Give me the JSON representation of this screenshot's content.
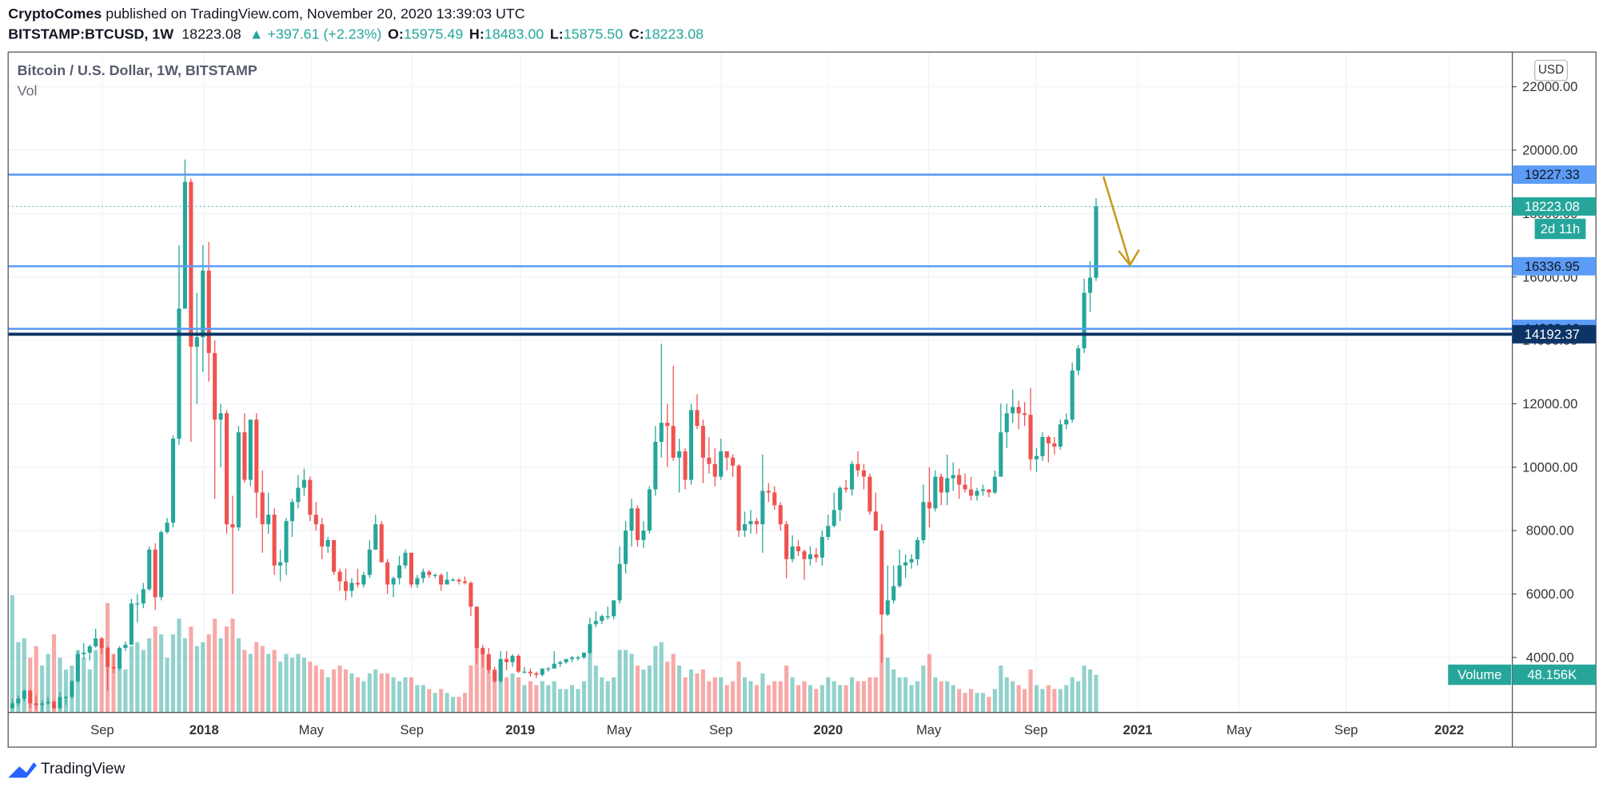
{
  "header": {
    "author": "CryptoComes",
    "published": "published on TradingView.com, November 20, 2020 13:39:03 UTC",
    "symbol": "BITSTAMP:BTCUSD, 1W",
    "last": "18223.08",
    "change": "▲ +397.61 (+2.23%)",
    "o_label": "O:",
    "o": "15975.49",
    "h_label": "H:",
    "h": "18483.00",
    "l_label": "L:",
    "l": "15875.50",
    "c_label": "C:",
    "c": "18223.08"
  },
  "footer": {
    "brand": "TradingView"
  },
  "chart_data": {
    "type": "candlestick",
    "title": "Bitcoin / U.S. Dollar, 1W, BITSTAMP",
    "volume_title": "Vol",
    "currency": "USD",
    "up_color": "#26a69a",
    "down_color": "#ef5350",
    "grid": true,
    "ylim": [
      2264,
      23093
    ],
    "yticks": [
      {
        "value": 4000,
        "label": "4000.00"
      },
      {
        "value": 6000,
        "label": "6000.00"
      },
      {
        "value": 8000,
        "label": "8000.00"
      },
      {
        "value": 10000,
        "label": "10000.00"
      },
      {
        "value": 12000,
        "label": "12000.00"
      },
      {
        "value": 14000,
        "label": "14000.00"
      },
      {
        "value": 16000,
        "label": "16000.00"
      },
      {
        "value": 18000,
        "label": "18000.00"
      },
      {
        "value": 20000,
        "label": "20000.00"
      },
      {
        "value": 22000,
        "label": "22000.00"
      }
    ],
    "xlim": [
      -0.7,
      251.9
    ],
    "xticks": [
      {
        "value": 15.1,
        "label": "Sep"
      },
      {
        "value": 32.2,
        "label": "2018"
      },
      {
        "value": 50.2,
        "label": "May"
      },
      {
        "value": 67.1,
        "label": "Sep"
      },
      {
        "value": 85.3,
        "label": "2019"
      },
      {
        "value": 101.9,
        "label": "May"
      },
      {
        "value": 119.0,
        "label": "Sep"
      },
      {
        "value": 137.0,
        "label": "2020"
      },
      {
        "value": 153.9,
        "label": "May"
      },
      {
        "value": 171.9,
        "label": "Sep"
      },
      {
        "value": 189.0,
        "label": "2021"
      },
      {
        "value": 206.0,
        "label": "May"
      },
      {
        "value": 224.0,
        "label": "Sep"
      },
      {
        "value": 241.3,
        "label": "2022"
      }
    ],
    "candles": [
      [
        2400,
        2700,
        2350,
        2550
      ],
      [
        2550,
        2800,
        2450,
        2700
      ],
      [
        2700,
        2980,
        2600,
        2950
      ],
      [
        2950,
        3000,
        2400,
        2550
      ],
      [
        2550,
        2800,
        2350,
        2500
      ],
      [
        2500,
        2650,
        2300,
        2550
      ],
      [
        2550,
        2750,
        2500,
        2600
      ],
      [
        2600,
        2650,
        2350,
        2400
      ],
      [
        2400,
        2900,
        2350,
        2750
      ],
      [
        2750,
        2800,
        2500,
        2750
      ],
      [
        2750,
        3300,
        2700,
        3250
      ],
      [
        3250,
        4200,
        3200,
        4100
      ],
      [
        4100,
        4450,
        3950,
        4150
      ],
      [
        4150,
        4400,
        3900,
        4350
      ],
      [
        4350,
        4900,
        4300,
        4600
      ],
      [
        4600,
        4650,
        4100,
        4300
      ],
      [
        4300,
        4350,
        2950,
        3700
      ],
      [
        3700,
        4100,
        3500,
        3650
      ],
      [
        3650,
        4350,
        3600,
        4300
      ],
      [
        4300,
        4500,
        4200,
        4400
      ],
      [
        4400,
        5850,
        4400,
        5700
      ],
      [
        5700,
        6000,
        5100,
        5700
      ],
      [
        5700,
        6350,
        5550,
        6150
      ],
      [
        6150,
        7500,
        6100,
        7400
      ],
      [
        7400,
        7600,
        5500,
        5900
      ],
      [
        5900,
        8000,
        5800,
        7950
      ],
      [
        7950,
        8400,
        7900,
        8250
      ],
      [
        8250,
        11000,
        8100,
        10900
      ],
      [
        10900,
        17000,
        10700,
        15000
      ],
      [
        15000,
        19700,
        15000,
        19000
      ],
      [
        19000,
        19100,
        10800,
        13800
      ],
      [
        13800,
        15500,
        12000,
        14100
      ],
      [
        14100,
        17000,
        13000,
        16200
      ],
      [
        16200,
        17100,
        12700,
        13600
      ],
      [
        13600,
        14000,
        9000,
        11500
      ],
      [
        11500,
        12000,
        10000,
        11700
      ],
      [
        11700,
        11800,
        7900,
        8200
      ],
      [
        8200,
        9100,
        6000,
        8100
      ],
      [
        8100,
        11300,
        8000,
        11100
      ],
      [
        11100,
        11700,
        9500,
        9600
      ],
      [
        9600,
        11500,
        9400,
        11500
      ],
      [
        11500,
        11700,
        8400,
        9200
      ],
      [
        9200,
        9900,
        7300,
        8200
      ],
      [
        8200,
        9200,
        7900,
        8500
      ],
      [
        8500,
        8700,
        6600,
        6900
      ],
      [
        6900,
        7400,
        6400,
        7000
      ],
      [
        7000,
        8400,
        6600,
        8300
      ],
      [
        8300,
        9000,
        7800,
        8900
      ],
      [
        8900,
        9750,
        8700,
        9350
      ],
      [
        9350,
        9950,
        9100,
        9600
      ],
      [
        9600,
        9700,
        8300,
        8500
      ],
      [
        8500,
        8900,
        8000,
        8200
      ],
      [
        8200,
        8400,
        7100,
        7500
      ],
      [
        7500,
        7800,
        7300,
        7700
      ],
      [
        7700,
        7700,
        6600,
        6700
      ],
      [
        6700,
        6800,
        6100,
        6400
      ],
      [
        6400,
        6800,
        5800,
        6100
      ],
      [
        6100,
        6500,
        5900,
        6350
      ],
      [
        6350,
        6800,
        6200,
        6300
      ],
      [
        6300,
        6700,
        6200,
        6600
      ],
      [
        6600,
        7700,
        6500,
        7400
      ],
      [
        7400,
        8500,
        7400,
        8200
      ],
      [
        8200,
        8300,
        7000,
        7000
      ],
      [
        7000,
        7100,
        6000,
        6300
      ],
      [
        6300,
        6550,
        5900,
        6500
      ],
      [
        6500,
        7200,
        6300,
        6900
      ],
      [
        6900,
        7400,
        6800,
        7300
      ],
      [
        7300,
        7300,
        6200,
        6300
      ],
      [
        6300,
        6600,
        6200,
        6500
      ],
      [
        6500,
        6800,
        6350,
        6700
      ],
      [
        6700,
        6750,
        6500,
        6600
      ],
      [
        6600,
        6650,
        6500,
        6600
      ],
      [
        6600,
        6650,
        6100,
        6300
      ],
      [
        6300,
        6700,
        6300,
        6450
      ],
      [
        6450,
        6500,
        6400,
        6450
      ],
      [
        6450,
        6500,
        6300,
        6400
      ],
      [
        6400,
        6550,
        6300,
        6350
      ],
      [
        6350,
        6400,
        5300,
        5600
      ],
      [
        5600,
        5600,
        3800,
        4300
      ],
      [
        4300,
        4400,
        3700,
        4100
      ],
      [
        4100,
        4300,
        3500,
        3600
      ],
      [
        3600,
        3700,
        3200,
        3250
      ],
      [
        3250,
        4200,
        3200,
        3950
      ],
      [
        3950,
        4200,
        3600,
        3850
      ],
      [
        3850,
        4100,
        3700,
        4050
      ],
      [
        4050,
        4100,
        3500,
        3550
      ],
      [
        3550,
        3700,
        3500,
        3550
      ],
      [
        3550,
        3650,
        3400,
        3500
      ],
      [
        3500,
        3550,
        3350,
        3450
      ],
      [
        3450,
        3650,
        3400,
        3650
      ],
      [
        3650,
        3700,
        3550,
        3650
      ],
      [
        3650,
        4200,
        3650,
        3800
      ],
      [
        3800,
        3900,
        3700,
        3850
      ],
      [
        3850,
        3950,
        3800,
        3950
      ],
      [
        3950,
        4050,
        3850,
        4000
      ],
      [
        4000,
        4050,
        3900,
        4000
      ],
      [
        4000,
        4150,
        3950,
        4150
      ],
      [
        4150,
        5250,
        4100,
        5050
      ],
      [
        5050,
        5450,
        4950,
        5150
      ],
      [
        5150,
        5350,
        5050,
        5300
      ],
      [
        5300,
        5600,
        5200,
        5300
      ],
      [
        5300,
        5800,
        5200,
        5800
      ],
      [
        5800,
        7500,
        5700,
        6950
      ],
      [
        6950,
        8300,
        6650,
        8000
      ],
      [
        8000,
        9000,
        7500,
        8700
      ],
      [
        8700,
        8800,
        7500,
        7700
      ],
      [
        7700,
        8300,
        7450,
        8000
      ],
      [
        8000,
        9400,
        7900,
        9300
      ],
      [
        9300,
        11300,
        9100,
        10800
      ],
      [
        10800,
        13900,
        10300,
        11400
      ],
      [
        11400,
        12000,
        10000,
        11300
      ],
      [
        11300,
        13200,
        10200,
        10300
      ],
      [
        10300,
        10900,
        9200,
        10500
      ],
      [
        10500,
        10600,
        9300,
        9600
      ],
      [
        9600,
        12000,
        9450,
        11800
      ],
      [
        11800,
        12300,
        11200,
        11300
      ],
      [
        11300,
        11500,
        9500,
        10300
      ],
      [
        10300,
        10950,
        9800,
        10100
      ],
      [
        10100,
        10600,
        9400,
        9700
      ],
      [
        9700,
        10900,
        9600,
        10500
      ],
      [
        10500,
        10500,
        9900,
        10300
      ],
      [
        10300,
        10400,
        9700,
        10050
      ],
      [
        10050,
        10100,
        7800,
        8000
      ],
      [
        8000,
        8600,
        7800,
        8200
      ],
      [
        8200,
        8650,
        7900,
        8300
      ],
      [
        8300,
        8400,
        7900,
        8200
      ],
      [
        8200,
        10400,
        7300,
        9250
      ],
      [
        9250,
        9500,
        8900,
        9200
      ],
      [
        9200,
        9400,
        8650,
        8800
      ],
      [
        8800,
        8900,
        8000,
        8200
      ],
      [
        8200,
        8300,
        6500,
        7100
      ],
      [
        7100,
        7850,
        7000,
        7500
      ],
      [
        7500,
        7700,
        7200,
        7350
      ],
      [
        7350,
        7400,
        6450,
        7100
      ],
      [
        7100,
        7500,
        6900,
        7250
      ],
      [
        7250,
        7450,
        7000,
        7150
      ],
      [
        7150,
        8000,
        6900,
        7800
      ],
      [
        7800,
        8500,
        7700,
        8150
      ],
      [
        8150,
        9200,
        8100,
        8650
      ],
      [
        8650,
        9400,
        8300,
        9350
      ],
      [
        9350,
        9600,
        9200,
        9300
      ],
      [
        9300,
        10200,
        9100,
        10100
      ],
      [
        10100,
        10500,
        9700,
        9900
      ],
      [
        9900,
        10100,
        9300,
        9700
      ],
      [
        9700,
        9800,
        8500,
        8600
      ],
      [
        8600,
        9200,
        8000,
        8000
      ],
      [
        8000,
        8200,
        3850,
        5350
      ],
      [
        5350,
        6900,
        5300,
        5800
      ],
      [
        5800,
        6900,
        5700,
        6250
      ],
      [
        6250,
        7400,
        6200,
        6900
      ],
      [
        6900,
        7250,
        6500,
        7000
      ],
      [
        7000,
        7250,
        6800,
        7100
      ],
      [
        7100,
        7800,
        6900,
        7700
      ],
      [
        7700,
        9450,
        7600,
        8900
      ],
      [
        8900,
        10000,
        8100,
        8700
      ],
      [
        8700,
        9900,
        8600,
        9700
      ],
      [
        9700,
        9800,
        8800,
        9200
      ],
      [
        9200,
        10400,
        8800,
        9650
      ],
      [
        9650,
        10150,
        9250,
        9750
      ],
      [
        9750,
        9950,
        9000,
        9450
      ],
      [
        9450,
        9800,
        9200,
        9300
      ],
      [
        9300,
        9700,
        8950,
        9100
      ],
      [
        9100,
        9350,
        8950,
        9250
      ],
      [
        9250,
        9450,
        9100,
        9300
      ],
      [
        9300,
        9300,
        9050,
        9200
      ],
      [
        9200,
        9900,
        9150,
        9700
      ],
      [
        9700,
        12000,
        9700,
        11100
      ],
      [
        11100,
        12000,
        10600,
        11700
      ],
      [
        11700,
        12450,
        11400,
        11900
      ],
      [
        11900,
        12100,
        11200,
        11700
      ],
      [
        11700,
        12050,
        11300,
        11650
      ],
      [
        11650,
        12500,
        9900,
        10250
      ],
      [
        10250,
        10600,
        9850,
        10350
      ],
      [
        10350,
        11100,
        10200,
        10950
      ],
      [
        10950,
        11000,
        10150,
        10750
      ],
      [
        10750,
        10950,
        10400,
        10650
      ],
      [
        10650,
        11500,
        10550,
        11350
      ],
      [
        11350,
        11700,
        11200,
        11500
      ],
      [
        11500,
        13300,
        11400,
        13050
      ],
      [
        13050,
        13850,
        12900,
        13750
      ],
      [
        13750,
        15950,
        13600,
        15500
      ],
      [
        15500,
        16500,
        14900,
        15975.49
      ],
      [
        15975.49,
        18483,
        15875.5,
        18223.08
      ]
    ],
    "volume": [
      150000,
      90000,
      95000,
      70000,
      85000,
      60000,
      75000,
      100000,
      70000,
      55000,
      60000,
      80000,
      70000,
      55000,
      80000,
      95000,
      140000,
      75000,
      65000,
      55000,
      85000,
      90000,
      80000,
      95000,
      110000,
      100000,
      70000,
      100000,
      120000,
      95000,
      110000,
      85000,
      90000,
      100000,
      120000,
      95000,
      110000,
      120000,
      95000,
      80000,
      75000,
      90000,
      85000,
      75000,
      80000,
      65000,
      75000,
      70000,
      75000,
      70000,
      65000,
      60000,
      55000,
      45000,
      55000,
      60000,
      55000,
      50000,
      45000,
      40000,
      50000,
      55000,
      50000,
      50000,
      45000,
      40000,
      45000,
      45000,
      35000,
      35000,
      30000,
      25000,
      30000,
      25000,
      20000,
      20000,
      25000,
      60000,
      100000,
      75000,
      70000,
      55000,
      65000,
      45000,
      50000,
      45000,
      35000,
      40000,
      35000,
      40000,
      35000,
      40000,
      30000,
      30000,
      35000,
      30000,
      40000,
      80000,
      60000,
      45000,
      40000,
      45000,
      80000,
      80000,
      75000,
      60000,
      55000,
      60000,
      85000,
      90000,
      65000,
      75000,
      60000,
      45000,
      55000,
      50000,
      55000,
      40000,
      45000,
      45000,
      35000,
      40000,
      65000,
      45000,
      40000,
      35000,
      50000,
      35000,
      40000,
      40000,
      60000,
      45000,
      35000,
      40000,
      35000,
      30000,
      35000,
      45000,
      40000,
      35000,
      35000,
      45000,
      40000,
      40000,
      45000,
      45000,
      100000,
      70000,
      55000,
      45000,
      45000,
      35000,
      40000,
      60000,
      75000,
      45000,
      40000,
      40000,
      35000,
      30000,
      25000,
      30000,
      25000,
      25000,
      20000,
      30000,
      60000,
      45000,
      40000,
      35000,
      30000,
      55000,
      35000,
      30000,
      35000,
      30000,
      30000,
      35000,
      45000,
      40000,
      60000,
      55000,
      48156
    ],
    "volume_label": "Volume",
    "volume_last_label": "48.156K",
    "countdown": "2d 11h",
    "hlines": [
      {
        "value": 19227.33,
        "color": "#5b9cf6",
        "text_color": "#131722"
      },
      {
        "value": 16336.95,
        "color": "#5b9cf6",
        "text_color": "#131722"
      },
      {
        "value": 14363.19,
        "color": "#5b9cf6",
        "text_color": "#131722"
      },
      {
        "value": 14192.37,
        "color": "#0d3466",
        "text_color": "#ffffff"
      }
    ]
  }
}
